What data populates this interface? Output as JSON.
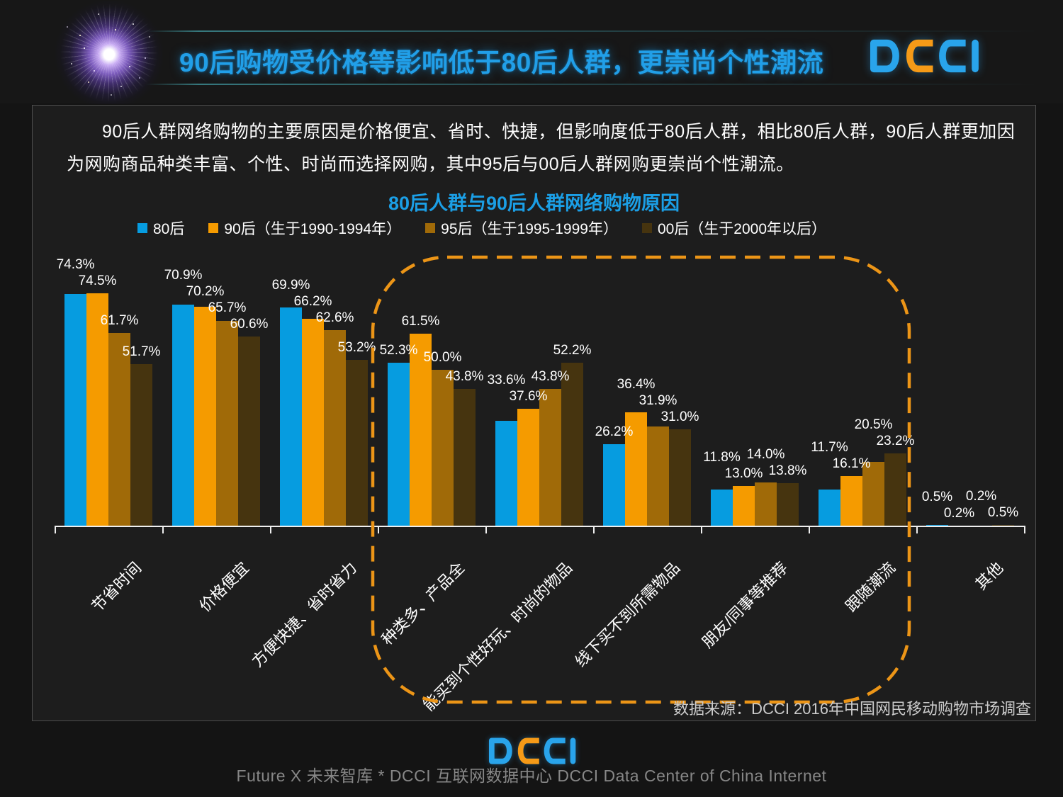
{
  "header": {
    "title": "90后购物受价格等影响低于80后人群，更崇尚个性潮流",
    "logo_text": "DCCI"
  },
  "intro": "90后人群网络购物的主要原因是价格便宜、省时、快捷，但影响度低于80后人群，相比80后人群，90后人群更加因为网购商品种类丰富、个性、时尚而选择网购，其中95后与00后人群网购更崇尚个性潮流。",
  "chart_data": {
    "type": "bar",
    "title": "80后人群与90后人群网络购物原因",
    "categories": [
      "节省时间",
      "价格便宜",
      "方便快捷、省时省力",
      "种类多、产品全",
      "能买到个性好玩、时尚的物品",
      "线下买不到所需物品",
      "朋友/同事等推荐",
      "跟随潮流",
      "其他"
    ],
    "series": [
      {
        "name": "80后",
        "color": "#069ce0",
        "values": [
          74.3,
          70.9,
          69.9,
          52.3,
          33.6,
          26.2,
          11.8,
          11.7,
          0.5
        ]
      },
      {
        "name": "90后（生于1990-1994年）",
        "color": "#f59b00",
        "values": [
          74.5,
          70.2,
          66.2,
          61.5,
          37.6,
          36.4,
          13.0,
          16.1,
          0.2
        ]
      },
      {
        "name": "95后（生于1995-1999年）",
        "color": "#a06a08",
        "values": [
          61.7,
          65.7,
          62.6,
          50.0,
          43.8,
          31.9,
          14.0,
          20.5,
          0.2
        ]
      },
      {
        "name": "00后（生于2000年以后）",
        "color": "#46340f",
        "values": [
          51.7,
          60.6,
          53.2,
          43.8,
          52.2,
          31.0,
          13.8,
          23.2,
          0.5
        ]
      }
    ],
    "value_suffix": "%",
    "ylim": [
      0,
      80
    ],
    "grid": false,
    "legend_position": "top",
    "highlight_category_range": [
      3,
      7
    ],
    "highlight_color": "#ec9517"
  },
  "source": "数据来源：DCCI 2016年中国网民移动购物市场调查",
  "footer": {
    "logo_text": "DCCI",
    "line": "Future X 未来智库 * DCCI 互联网数据中心 DCCI Data Center of China Internet"
  }
}
